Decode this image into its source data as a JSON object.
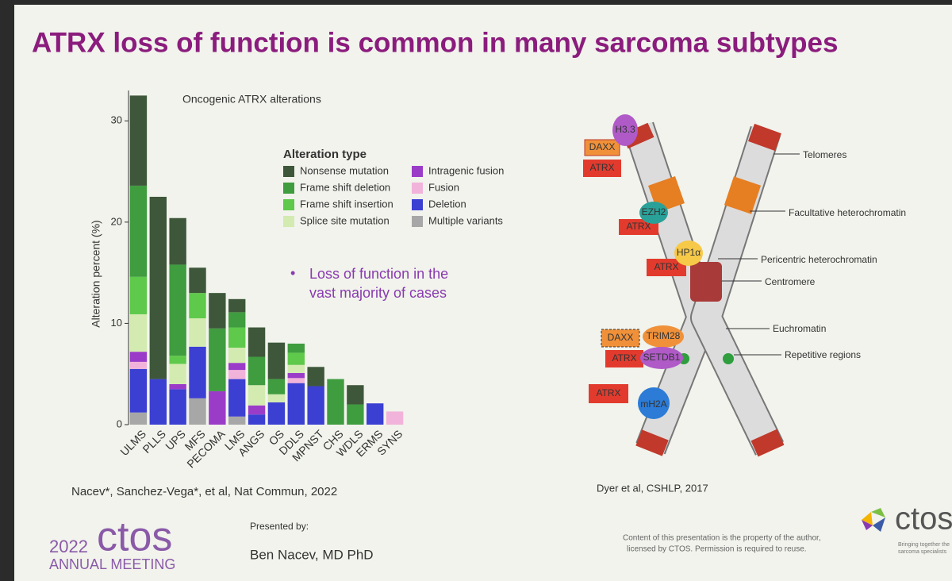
{
  "chart_data": {
    "type": "stacked-bar",
    "subtitle": "Oncogenic ATRX alterations",
    "ylabel": "Alteration percent (%)",
    "legend_title": "Alteration type",
    "categories": [
      "ULMS",
      "PLLS",
      "UPS",
      "MFS",
      "PECOMA",
      "LMS",
      "ANGS",
      "OS",
      "DDLS",
      "MPNST",
      "CHS",
      "WDLS",
      "ERMS",
      "SYNS"
    ],
    "series": [
      {
        "name": "Multiple variants",
        "color": "#a7a7a7",
        "values": [
          1.2,
          0,
          0,
          2.6,
          0,
          0.8,
          0,
          0,
          0,
          0,
          0,
          0,
          0,
          0
        ]
      },
      {
        "name": "Deletion",
        "color": "#3b3fd2",
        "values": [
          4.3,
          4.5,
          3.5,
          5.1,
          0,
          3.7,
          1.0,
          2.2,
          4.1,
          3.8,
          0,
          0,
          2.1,
          0
        ]
      },
      {
        "name": "Fusion",
        "color": "#f2b3da",
        "values": [
          0.7,
          0,
          0,
          0,
          0,
          0.9,
          0,
          0,
          0.5,
          0,
          0,
          0,
          0,
          1.3
        ]
      },
      {
        "name": "Intragenic fusion",
        "color": "#9b3cc9",
        "values": [
          1.0,
          0,
          0.5,
          0,
          3.3,
          0.7,
          0.9,
          0,
          0.5,
          0,
          0,
          0,
          0,
          0
        ]
      },
      {
        "name": "Splice site mutation",
        "color": "#d3ebb0",
        "values": [
          3.7,
          0,
          2.0,
          2.8,
          0,
          1.5,
          2.0,
          0.8,
          0.8,
          0,
          0,
          0,
          0,
          0
        ]
      },
      {
        "name": "Frame shift insertion",
        "color": "#5ec94a",
        "values": [
          3.7,
          0,
          0.8,
          2.5,
          0,
          2.0,
          0,
          0,
          1.2,
          0,
          0,
          0,
          0,
          0
        ]
      },
      {
        "name": "Frame shift deletion",
        "color": "#3f9c3f",
        "values": [
          9.0,
          0,
          9.0,
          0,
          6.2,
          1.5,
          2.8,
          1.5,
          0.9,
          0,
          4.5,
          2.0,
          0,
          0
        ]
      },
      {
        "name": "Nonsense mutation",
        "color": "#3e573a",
        "values": [
          8.9,
          18.0,
          4.6,
          2.5,
          3.5,
          1.3,
          2.9,
          3.6,
          0,
          1.9,
          0,
          1.9,
          0,
          0
        ]
      }
    ],
    "legend_order": [
      7,
      6,
      5,
      4,
      3,
      2,
      1,
      0
    ],
    "ylim": [
      0,
      33
    ],
    "yticks": [
      0,
      10,
      20,
      30
    ],
    "grid": false
  },
  "slide": {
    "title": "ATRX loss of function is common in many sarcoma subtypes",
    "bullet": "•",
    "bullet_lines": [
      "Loss of function in the",
      "vast majority of cases"
    ],
    "citation_left": "Nacev*, Sanchez-Vega*, et al, Nat Commun, 2022",
    "citation_right": "Dyer et al, CSHLP, 2017",
    "year": "2022",
    "logo": "ctos",
    "meeting": "ANNUAL MEETING",
    "presented_by": "Presented by:",
    "presenter": "Ben Nacev, MD PhD",
    "notice": [
      "Content of this presentation is the property of the author,",
      "licensed by CTOS. Permission is required to reuse."
    ],
    "tagline": [
      "Bringing together the",
      "sarcoma specialists"
    ]
  },
  "diagram": {
    "labels": [
      "Telomeres",
      "Facultative heterochromatin",
      "Pericentric heterochromatin",
      "Centromere",
      "Euchromatin",
      "Repetitive regions"
    ],
    "proteins": [
      "H3.3",
      "DAXX",
      "ATRX",
      "EZH2",
      "ATRX",
      "HP1α",
      "ATRX",
      "DAXX",
      "TRIM28",
      "ATRX",
      "SETDB1",
      "ATRX",
      "mH2A"
    ]
  }
}
